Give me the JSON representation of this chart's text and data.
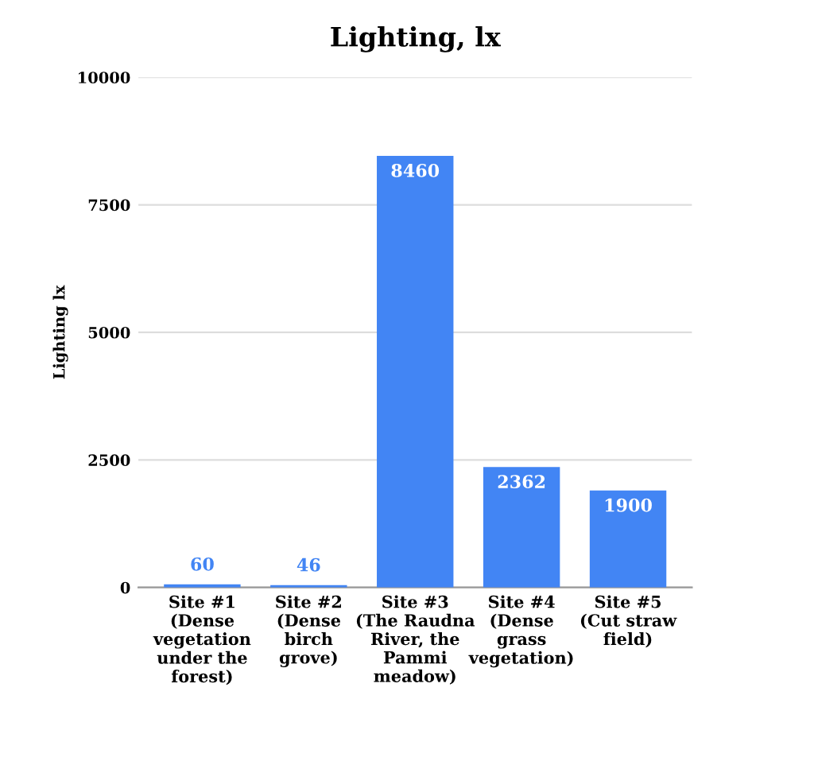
{
  "chart_data": {
    "type": "bar",
    "title": "Lighting, lx",
    "ylabel": "Lighting lx",
    "categories": [
      "Site #1 (Dense vegetation under the forest)",
      "Site #2 (Dense birch grove)",
      "Site #3 (The Raudna River, the Pammi meadow)",
      "Site #4 (Dense grass vegetation)",
      "Site #5 (Cut straw field)"
    ],
    "values": [
      60,
      46,
      8460,
      2362,
      1900
    ],
    "color": "#4285f4",
    "ylim": [
      0,
      10000
    ],
    "yticks": [
      0,
      2500,
      5000,
      7500,
      10000
    ],
    "grid": "y",
    "data_labels": true
  }
}
